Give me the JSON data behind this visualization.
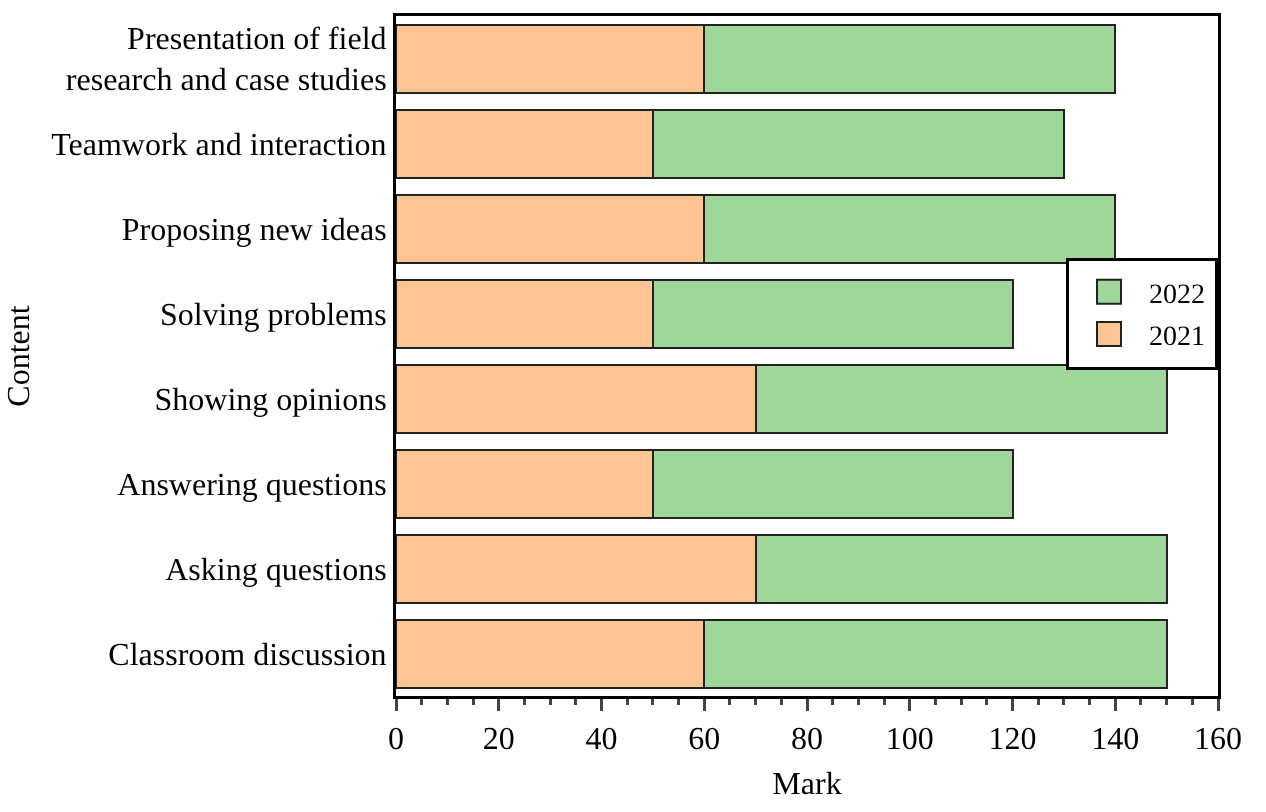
{
  "chart_data": {
    "type": "bar",
    "orientation": "horizontal",
    "stacked": true,
    "xlabel": "Mark",
    "ylabel": "Content",
    "categories": [
      "Presentation of field\nresearch and case studies",
      "Teamwork and interaction",
      "Proposing new ideas",
      "Solving problems",
      "Showing opinions",
      "Answering questions",
      "Asking questions",
      "Classroom discussion"
    ],
    "series": [
      {
        "name": "2021",
        "color": "#fdc593",
        "values": [
          60,
          50,
          60,
          50,
          70,
          50,
          70,
          60
        ]
      },
      {
        "name": "2022",
        "color": "#9fd79b",
        "values": [
          80,
          80,
          80,
          70,
          80,
          70,
          80,
          90
        ]
      }
    ],
    "xlim": [
      0,
      160
    ],
    "xticks": [
      0,
      20,
      40,
      60,
      80,
      100,
      120,
      140,
      160
    ],
    "legend": "right",
    "grid": false
  }
}
